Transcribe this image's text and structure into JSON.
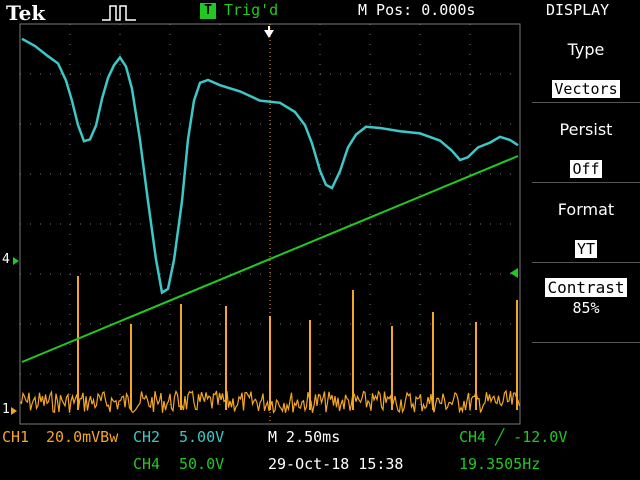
{
  "header": {
    "brand": "Tek",
    "trigger_badge": "T",
    "trigger_status": "Trig'd",
    "m_pos": "M Pos: 0.000s",
    "menu_title": "DISPLAY"
  },
  "menu": {
    "items": [
      {
        "label": "Type",
        "value": "Vectors"
      },
      {
        "label": "Persist",
        "value": "Off"
      },
      {
        "label": "Format",
        "value": "YT"
      },
      {
        "label": "Contrast",
        "value": "85%"
      }
    ]
  },
  "channel_markers": {
    "ch4_left": "4",
    "ch1_left": "1"
  },
  "footer": {
    "ch1": "CH1",
    "ch1_scale": "20.0mVBw",
    "ch2": "CH2",
    "ch2_scale": "5.00V",
    "ch4": "CH4",
    "ch4_scale": "50.0V",
    "timebase": "M 2.50ms",
    "datetime": "29-Oct-18 15:38",
    "trigger": "CH4 ╱ -12.0V",
    "frequency": "19.3505Hz"
  },
  "colors": {
    "ch1": "#f5a623",
    "ch2": "#3cc8c8",
    "ch4": "#22c822",
    "grid": "#666666"
  },
  "icons": {
    "acquire": "pulse-icon",
    "trigger_position": "trigger-arrow-icon",
    "ch4_ground": "ground-marker-icon"
  }
}
